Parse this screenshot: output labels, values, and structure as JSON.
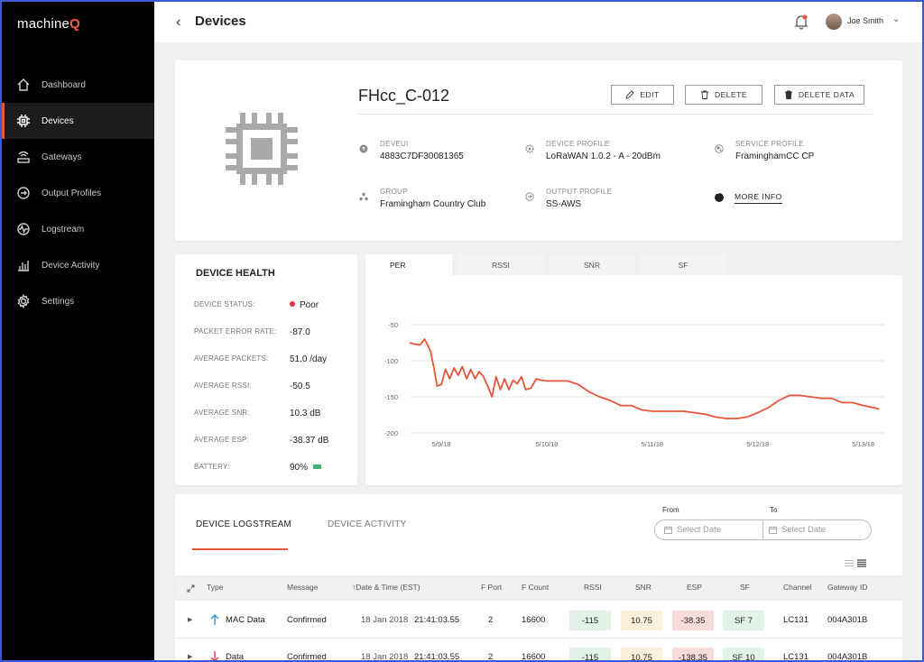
{
  "app": {
    "logo_text": "machine",
    "logo_accent": "Q",
    "accent_color": "#e8553a",
    "border_color": "#3b5bd6"
  },
  "sidebar": {
    "items": [
      {
        "label": "Dashboard",
        "icon": "home-icon"
      },
      {
        "label": "Devices",
        "icon": "chip-icon",
        "active": true
      },
      {
        "label": "Gateways",
        "icon": "gateway-icon"
      },
      {
        "label": "Output Profiles",
        "icon": "output-icon"
      },
      {
        "label": "Logstream",
        "icon": "logstream-icon"
      },
      {
        "label": "Device Activity",
        "icon": "bar-chart-icon"
      },
      {
        "label": "Settings",
        "icon": "gear-icon"
      }
    ]
  },
  "header": {
    "title": "Devices",
    "user_name": "Joe Smith"
  },
  "device": {
    "name": "FHcc_C-012",
    "actions": {
      "edit": "EDIT",
      "delete": "DELETE",
      "delete_data": "DELETE DATA"
    },
    "fields": {
      "deveui": {
        "label": "DEVEUI",
        "value": "4883C7DF30081365"
      },
      "device_profile": {
        "label": "DEVICE PROFILE",
        "value": "LoRaWAN 1.0.2 - A - 20dBm"
      },
      "service_profile": {
        "label": "SERVICE PROFILE",
        "value": "FraminghamCC  CP"
      },
      "group": {
        "label": "GROUP",
        "value": "Framingham Country Club"
      },
      "output_profile": {
        "label": "OUTPUT PROFILE",
        "value": "SS-AWS"
      }
    },
    "more_info": "MORE INFO"
  },
  "health": {
    "title": "DEVICE HEALTH",
    "rows": [
      {
        "key": "DEVICE STATUS:",
        "value": "Poor"
      },
      {
        "key": "PACKET ERROR RATE:",
        "value": "-87.0"
      },
      {
        "key": "AVERAGE PACKETS:",
        "value": "51.0 /day"
      },
      {
        "key": "AVERAGE RSSI:",
        "value": "-50.5"
      },
      {
        "key": "AVERAGE SNR:",
        "value": "10.3  dB"
      },
      {
        "key": "AVERAGE ESP:",
        "value": "-38.37 dB"
      },
      {
        "key": "BATTERY:",
        "value": "90%"
      }
    ],
    "status_color": "#e0303a"
  },
  "chart_tabs": [
    "PER",
    "RSSI",
    "SNR",
    "SF"
  ],
  "chart_data": {
    "type": "line",
    "y_ticks": [
      "-50",
      "-100",
      "-150",
      "-200"
    ],
    "ylim": [
      -200,
      -50
    ],
    "x_ticks": [
      "5/9/18",
      "5/10/18",
      "5/11/18",
      "5/12/18",
      "5/13/18"
    ],
    "x_tick_pos": [
      0,
      1,
      2,
      3,
      4
    ],
    "xlim": [
      -0.3,
      4.2
    ],
    "line_color": "#e8553a",
    "series": [
      {
        "x": [
          -0.3,
          -0.25,
          -0.2,
          -0.16,
          -0.13,
          -0.1,
          -0.07,
          -0.04,
          0.0,
          0.04,
          0.08,
          0.12,
          0.16,
          0.2,
          0.24,
          0.28,
          0.32,
          0.36,
          0.4,
          0.44,
          0.48,
          0.52,
          0.56,
          0.6,
          0.64,
          0.68,
          0.72,
          0.76,
          0.8,
          0.85,
          0.9,
          0.95,
          1.0,
          1.05,
          1.1,
          1.2,
          1.3,
          1.4,
          1.5,
          1.6,
          1.7,
          1.8,
          1.9,
          2.0,
          2.1,
          2.2,
          2.3,
          2.4,
          2.5,
          2.6,
          2.7,
          2.8,
          2.9,
          3.0,
          3.1,
          3.2,
          3.3,
          3.4,
          3.5,
          3.6,
          3.7,
          3.8,
          3.9,
          4.0,
          4.1,
          4.15
        ],
        "y": [
          -75,
          -77,
          -78,
          -70,
          -78,
          -88,
          -110,
          -135,
          -133,
          -112,
          -125,
          -110,
          -120,
          -108,
          -125,
          -112,
          -125,
          -115,
          -122,
          -135,
          -150,
          -122,
          -140,
          -125,
          -140,
          -127,
          -132,
          -122,
          -140,
          -138,
          -125,
          -127,
          -128,
          -128,
          -128,
          -128,
          -133,
          -143,
          -150,
          -155,
          -162,
          -162,
          -168,
          -170,
          -170,
          -170,
          -170,
          -172,
          -174,
          -178,
          -180,
          -180,
          -178,
          -172,
          -165,
          -155,
          -148,
          -148,
          -150,
          -152,
          -152,
          -158,
          -158,
          -162,
          -165,
          -167
        ]
      }
    ]
  },
  "logstream": {
    "tabs": [
      "DEVICE LOGSTREAM",
      "DEVICE ACTIVITY"
    ],
    "from_label": "From",
    "to_label": "To",
    "from_placeholder": "Select Date",
    "to_placeholder": "Select Date",
    "columns": [
      "Type",
      "Message",
      "Date & Time (EST)",
      "F Port",
      "F Count",
      "RSSI",
      "SNR",
      "ESP",
      "SF",
      "Channel",
      "Gateway ID"
    ],
    "rows": [
      {
        "type": "MAC Data",
        "type_icon": "arrow-up-icon",
        "message": "Confirmed",
        "date": "18 Jan 2018",
        "time": "21:41:03.55",
        "fport": "2",
        "fcount": "16600",
        "rssi": "-115",
        "snr": "10.75",
        "esp": "-38.35",
        "sf": "SF 7",
        "channel": "LC131",
        "gateway": "004A301B"
      },
      {
        "type": "Data",
        "type_icon": "arrow-down-icon",
        "message": "Confirmed",
        "date": "18 Jan 2018",
        "time": "21:41:03.55",
        "fport": "2",
        "fcount": "16600",
        "rssi": "-115",
        "snr": "10.75",
        "esp": "-138.35",
        "sf": "SF 10",
        "channel": "LC131",
        "gateway": "004A301B"
      }
    ]
  }
}
